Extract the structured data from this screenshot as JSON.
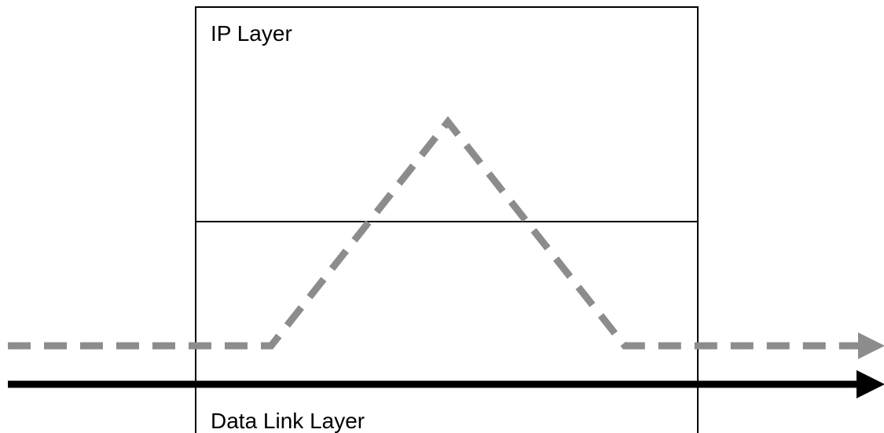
{
  "layers": {
    "upper": {
      "label": "IP Layer"
    },
    "lower": {
      "label": "Data Link Layer"
    }
  },
  "paths": {
    "routed_path": {
      "color": "#8c8c8c",
      "style": "dashed"
    },
    "link_path": {
      "color": "#000000",
      "style": "solid"
    }
  }
}
